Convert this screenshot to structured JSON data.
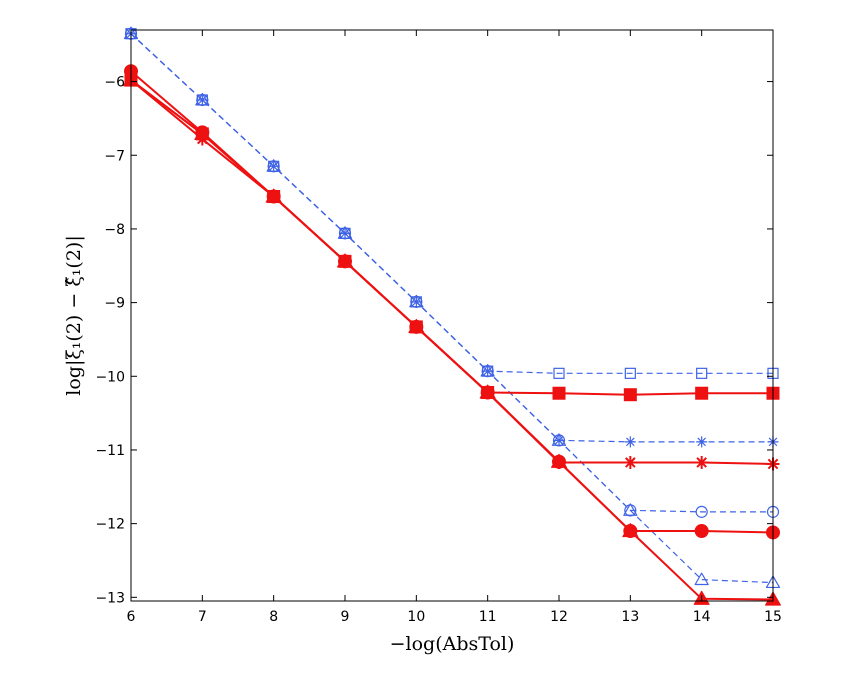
{
  "chart_data": {
    "type": "line",
    "title": "",
    "xlabel": "−log(AbsTol)",
    "ylabel": "log|ξ₁(2) − ξ̂₁(2)|",
    "xlim": [
      6,
      15
    ],
    "ylim": [
      -13.05,
      -5.3
    ],
    "x_ticks": [
      6,
      7,
      8,
      9,
      10,
      11,
      12,
      13,
      14,
      15
    ],
    "y_ticks": [
      -13,
      -12,
      -11,
      -10,
      -9,
      -8,
      -7,
      -6
    ],
    "x_tick_labels": [
      "6",
      "7",
      "8",
      "9",
      "10",
      "11",
      "12",
      "13",
      "14",
      "15"
    ],
    "y_tick_labels": [
      "−13",
      "−12",
      "−11",
      "−10",
      "−9",
      "−8",
      "−7",
      "−6"
    ],
    "colors": {
      "blue": "#3f63e6",
      "red": "#ee1111"
    },
    "series": [
      {
        "name": "blue-square",
        "color": "blue",
        "style": "dashed",
        "marker": "square-open",
        "x": [
          6,
          7,
          8,
          9,
          10,
          11,
          12,
          13,
          14,
          15
        ],
        "y": [
          -5.35,
          -6.25,
          -7.15,
          -8.06,
          -8.99,
          -9.93,
          -9.96,
          -9.96,
          -9.96,
          -9.96
        ]
      },
      {
        "name": "blue-star",
        "color": "blue",
        "style": "dashed",
        "marker": "star-open",
        "x": [
          6,
          7,
          8,
          9,
          10,
          11,
          12,
          13,
          14,
          15
        ],
        "y": [
          -5.35,
          -6.25,
          -7.15,
          -8.06,
          -8.99,
          -9.93,
          -10.87,
          -10.89,
          -10.89,
          -10.89
        ]
      },
      {
        "name": "blue-circle",
        "color": "blue",
        "style": "dashed",
        "marker": "circle-open",
        "x": [
          6,
          7,
          8,
          9,
          10,
          11,
          12,
          13,
          14,
          15
        ],
        "y": [
          -5.35,
          -6.25,
          -7.15,
          -8.06,
          -8.99,
          -9.93,
          -10.87,
          -11.82,
          -11.84,
          -11.84
        ]
      },
      {
        "name": "blue-triangle",
        "color": "blue",
        "style": "dashed",
        "marker": "triangle-open",
        "x": [
          6,
          7,
          8,
          9,
          10,
          11,
          12,
          13,
          14,
          15
        ],
        "y": [
          -5.35,
          -6.25,
          -7.15,
          -8.06,
          -8.99,
          -9.93,
          -10.87,
          -11.82,
          -12.76,
          -12.8
        ]
      },
      {
        "name": "red-square",
        "color": "red",
        "style": "solid",
        "marker": "square-filled",
        "x": [
          6,
          7,
          8,
          9,
          10,
          11,
          12,
          13,
          14,
          15
        ],
        "y": [
          -5.98,
          -6.71,
          -7.56,
          -8.44,
          -9.33,
          -10.22,
          -10.23,
          -10.25,
          -10.23,
          -10.23
        ]
      },
      {
        "name": "red-star",
        "color": "red",
        "style": "solid",
        "marker": "star-filled",
        "x": [
          6,
          7,
          8,
          9,
          10,
          11,
          12,
          13,
          14,
          15
        ],
        "y": [
          -5.98,
          -6.78,
          -7.56,
          -8.44,
          -9.33,
          -10.22,
          -11.17,
          -11.17,
          -11.17,
          -11.19
        ]
      },
      {
        "name": "red-circle",
        "color": "red",
        "style": "solid",
        "marker": "circle-filled",
        "x": [
          6,
          7,
          8,
          9,
          10,
          11,
          12,
          13,
          14,
          15
        ],
        "y": [
          -5.86,
          -6.69,
          -7.56,
          -8.44,
          -9.33,
          -10.22,
          -11.16,
          -12.1,
          -12.1,
          -12.12
        ]
      },
      {
        "name": "red-triangle",
        "color": "red",
        "style": "solid",
        "marker": "triangle-filled",
        "x": [
          6,
          7,
          8,
          9,
          10,
          11,
          12,
          13,
          14,
          15
        ],
        "y": [
          -5.98,
          -6.71,
          -7.56,
          -8.44,
          -9.33,
          -10.22,
          -11.16,
          -12.1,
          -13.02,
          -13.03
        ]
      }
    ]
  }
}
